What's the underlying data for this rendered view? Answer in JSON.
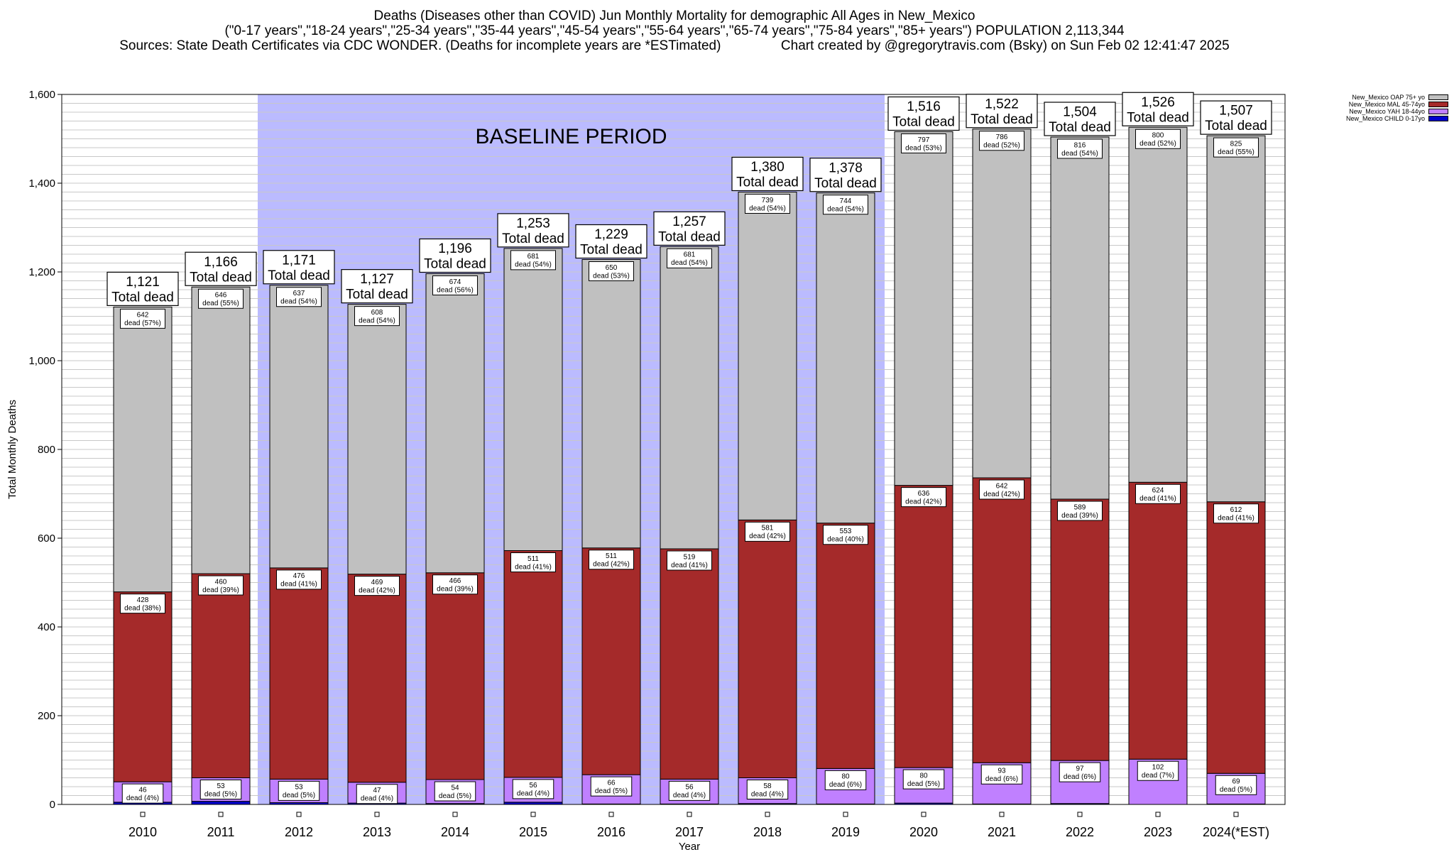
{
  "title": {
    "line1": "Deaths (Diseases other than COVID) Jun Monthly Mortality for demographic All Ages in New_Mexico",
    "line2": "(\"0-17 years\",\"18-24 years\",\"25-34 years\",\"35-44 years\",\"45-54 years\",\"55-64 years\",\"65-74 years\",\"75-84 years\",\"85+ years\") POPULATION 2,113,344",
    "line3": "Sources: State Death Certificates via CDC WONDER. (Deaths for incomplete years are *ESTimated)                Chart created by @gregorytravis.com (Bsky) on Sun Feb 02 12:41:47 2025"
  },
  "legend": [
    {
      "label": "New_Mexico OAP 75+ yo",
      "color": "#c0c0c0"
    },
    {
      "label": "New_Mexico MAL 45-74yo",
      "color": "#a52a2a"
    },
    {
      "label": "New_Mexico YAH 18-44yo",
      "color": "#c080ff"
    },
    {
      "label": "New_Mexico CHILD 0-17yo",
      "color": "#0000cd"
    }
  ],
  "chart_data": {
    "type": "bar",
    "stacked": true,
    "xlabel": "Year",
    "ylabel": "Total Monthly Deaths",
    "ylim": [
      0,
      1600
    ],
    "yticks": [
      "0",
      "200",
      "400",
      "600",
      "800",
      "1,000",
      "1,200",
      "1,400",
      "1,600"
    ],
    "baseline_label": "BASELINE PERIOD",
    "baseline_range": [
      "2012",
      "2019"
    ],
    "total_suffix": "Total dead",
    "categories": [
      "2010",
      "2011",
      "2012",
      "2013",
      "2014",
      "2015",
      "2016",
      "2017",
      "2018",
      "2019",
      "2020",
      "2021",
      "2022",
      "2023",
      "2024(*EST)"
    ],
    "totals": [
      "1,121",
      "1,166",
      "1,171",
      "1,127",
      "1,196",
      "1,253",
      "1,229",
      "1,257",
      "1,380",
      "1,378",
      "1,516",
      "1,522",
      "1,504",
      "1,526",
      "1,507"
    ],
    "series": [
      {
        "name": "New_Mexico CHILD 0-17yo",
        "color": "#0000cd",
        "values": [
          5,
          7,
          4,
          3,
          2,
          5,
          1,
          1,
          2,
          1,
          3,
          1,
          2,
          0,
          1
        ],
        "labels": [
          "",
          "",
          "",
          "",
          "",
          "",
          "",
          "",
          "",
          "",
          "",
          "",
          "",
          "",
          ""
        ]
      },
      {
        "name": "New_Mexico YAH 18-44yo",
        "color": "#c080ff",
        "values": [
          46,
          53,
          53,
          47,
          54,
          56,
          66,
          56,
          58,
          80,
          80,
          93,
          97,
          102,
          69
        ],
        "labels": [
          "46\ndead (4%)",
          "53\ndead (5%)",
          "53\ndead (5%)",
          "47\ndead (4%)",
          "54\ndead (5%)",
          "56\ndead (4%)",
          "66\ndead (5%)",
          "56\ndead (4%)",
          "58\ndead (4%)",
          "80\ndead (6%)",
          "80\ndead (5%)",
          "93\ndead (6%)",
          "97\ndead (6%)",
          "102\ndead (7%)",
          "69\ndead (5%)"
        ]
      },
      {
        "name": "New_Mexico MAL 45-74yo",
        "color": "#a52a2a",
        "values": [
          428,
          460,
          476,
          469,
          466,
          511,
          511,
          519,
          581,
          553,
          636,
          642,
          589,
          624,
          612
        ],
        "labels": [
          "428\ndead (38%)",
          "460\ndead (39%)",
          "476\ndead (41%)",
          "469\ndead (42%)",
          "466\ndead (39%)",
          "511\ndead (41%)",
          "511\ndead (42%)",
          "519\ndead (41%)",
          "581\ndead (42%)",
          "553\ndead (40%)",
          "636\ndead (42%)",
          "642\ndead (42%)",
          "589\ndead (39%)",
          "624\ndead (41%)",
          "612\ndead (41%)"
        ]
      },
      {
        "name": "New_Mexico OAP 75+ yo",
        "color": "#c0c0c0",
        "values": [
          642,
          646,
          637,
          608,
          674,
          681,
          650,
          681,
          739,
          744,
          797,
          786,
          816,
          800,
          825
        ],
        "labels": [
          "642\ndead (57%)",
          "646\ndead (55%)",
          "637\ndead (54%)",
          "608\ndead (54%)",
          "674\ndead (56%)",
          "681\ndead (54%)",
          "650\ndead (53%)",
          "681\ndead (54%)",
          "739\ndead (54%)",
          "744\ndead (54%)",
          "797\ndead (53%)",
          "786\ndead (52%)",
          "816\ndead (54%)",
          "800\ndead (52%)",
          "825\ndead (55%)"
        ]
      }
    ],
    "colors": {
      "baseline": "#bbbbff",
      "grid": "#c8c8c8"
    }
  }
}
